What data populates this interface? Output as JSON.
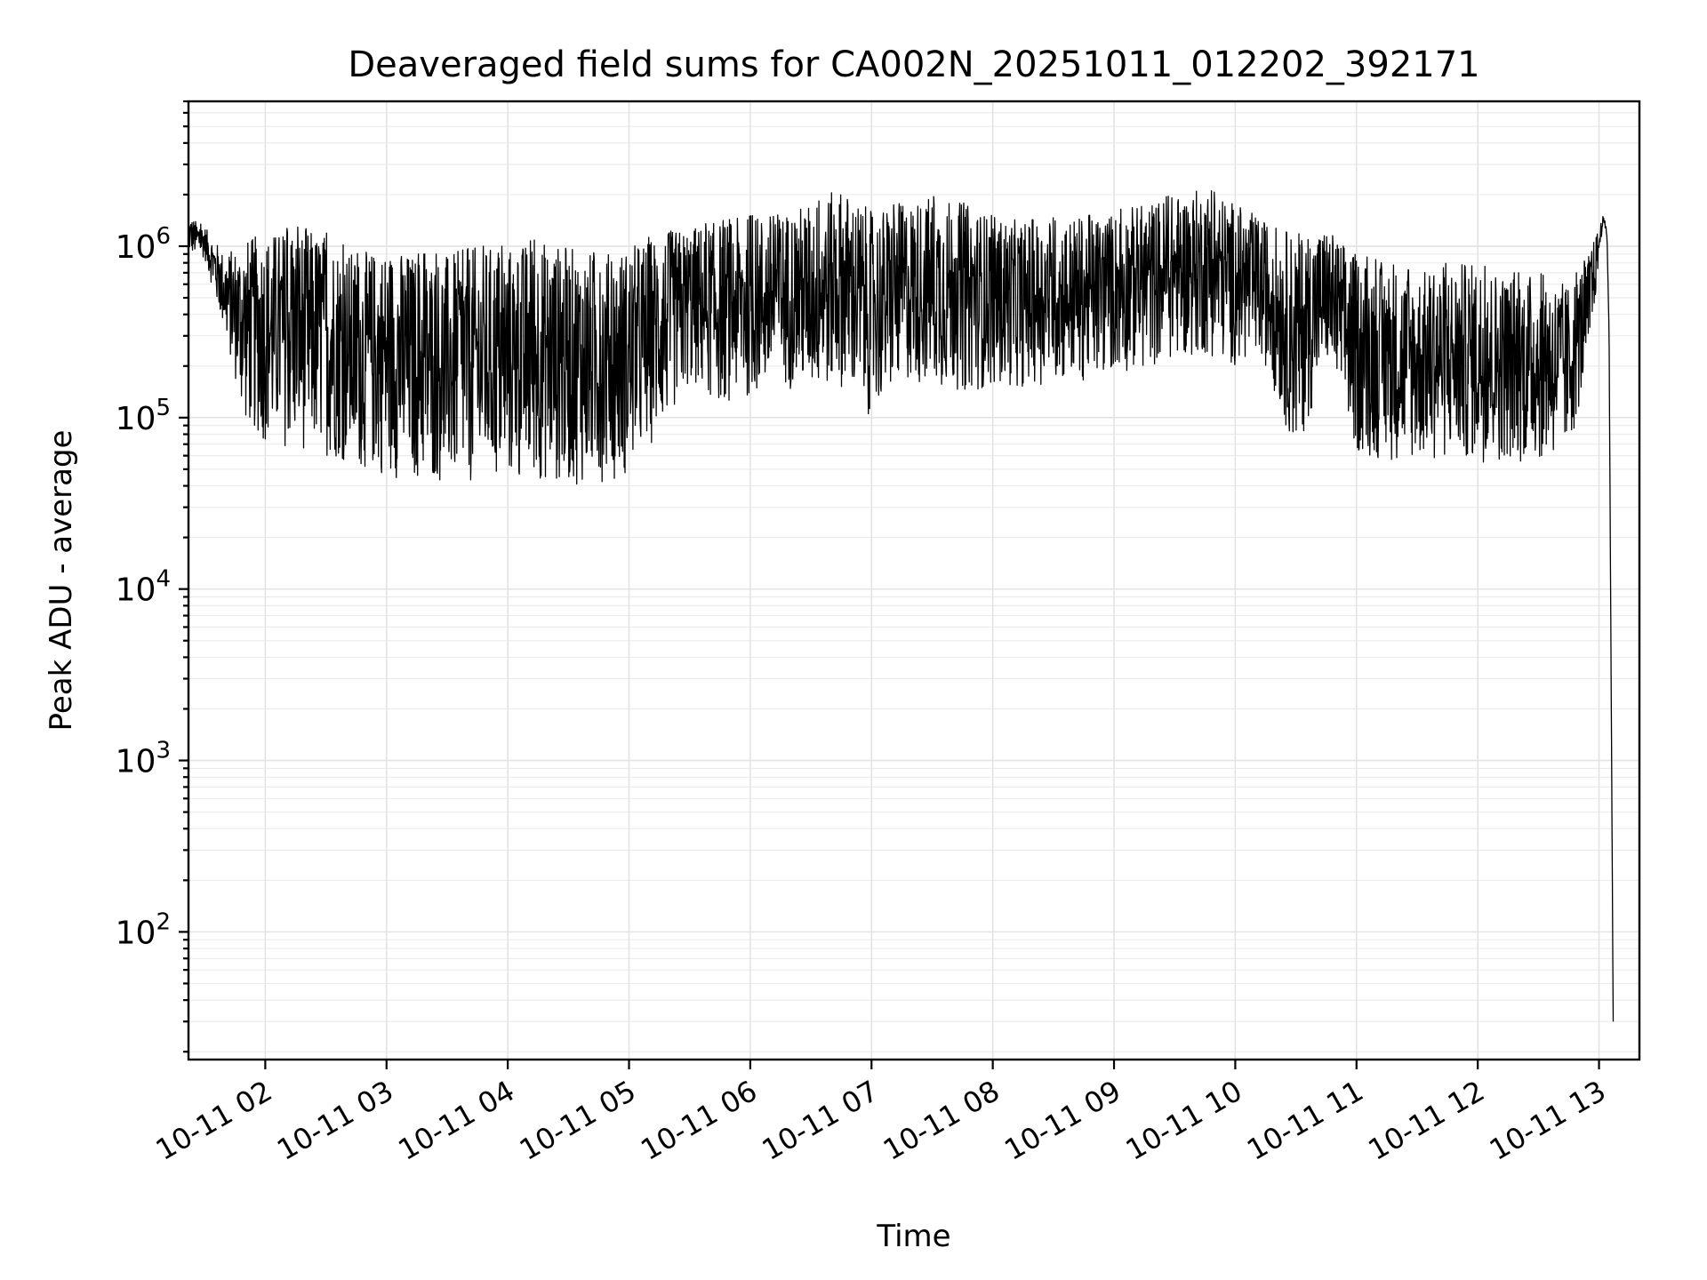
{
  "chart_data": {
    "type": "line",
    "title": "Deaveraged field sums for CA002N_20251011_012202_392171",
    "xlabel": "Time",
    "ylabel": "Peak ADU - average",
    "yscale": "log",
    "ylim": [
      18,
      7000000
    ],
    "xlim": [
      "2025-10-11 01:22",
      "2025-10-11 13:20"
    ],
    "grid": true,
    "x_ticks": [
      "10-11 02",
      "10-11 03",
      "10-11 04",
      "10-11 05",
      "10-11 06",
      "10-11 07",
      "10-11 08",
      "10-11 09",
      "10-11 10",
      "10-11 11",
      "10-11 12",
      "10-11 13"
    ],
    "y_ticks": [
      {
        "base": "10",
        "exp": "2"
      },
      {
        "base": "10",
        "exp": "3"
      },
      {
        "base": "10",
        "exp": "4"
      },
      {
        "base": "10",
        "exp": "5"
      },
      {
        "base": "10",
        "exp": "6"
      }
    ],
    "series": [
      {
        "color": "#000000",
        "x": [
          "2025-10-11 01:22",
          "2025-10-11 01:30",
          "2025-10-11 01:40",
          "2025-10-11 01:50",
          "2025-10-11 02:00",
          "2025-10-11 02:15",
          "2025-10-11 02:30",
          "2025-10-11 02:45",
          "2025-10-11 03:00",
          "2025-10-11 03:15",
          "2025-10-11 03:30",
          "2025-10-11 03:45",
          "2025-10-11 04:00",
          "2025-10-11 04:15",
          "2025-10-11 04:30",
          "2025-10-11 04:45",
          "2025-10-11 05:00",
          "2025-10-11 05:15",
          "2025-10-11 05:30",
          "2025-10-11 05:45",
          "2025-10-11 06:00",
          "2025-10-11 06:15",
          "2025-10-11 06:30",
          "2025-10-11 06:45",
          "2025-10-11 07:00",
          "2025-10-11 07:15",
          "2025-10-11 07:30",
          "2025-10-11 07:45",
          "2025-10-11 08:00",
          "2025-10-11 08:15",
          "2025-10-11 08:30",
          "2025-10-11 08:45",
          "2025-10-11 09:00",
          "2025-10-11 09:15",
          "2025-10-11 09:30",
          "2025-10-11 09:45",
          "2025-10-11 10:00",
          "2025-10-11 10:15",
          "2025-10-11 10:30",
          "2025-10-11 10:45",
          "2025-10-11 11:00",
          "2025-10-11 11:15",
          "2025-10-11 11:30",
          "2025-10-11 11:45",
          "2025-10-11 12:00",
          "2025-10-11 12:15",
          "2025-10-11 12:30",
          "2025-10-11 12:45",
          "2025-10-11 12:55",
          "2025-10-11 13:00",
          "2025-10-11 13:02",
          "2025-10-11 13:04",
          "2025-10-11 13:05",
          "2025-10-11 13:06",
          "2025-10-11 13:07"
        ],
        "y_low": [
          900000,
          850000,
          300000,
          90000,
          70000,
          65000,
          60000,
          50000,
          45000,
          42000,
          40000,
          40000,
          40000,
          42000,
          40000,
          42000,
          45000,
          80000,
          150000,
          120000,
          130000,
          150000,
          140000,
          150000,
          100000,
          160000,
          150000,
          140000,
          150000,
          150000,
          160000,
          160000,
          180000,
          190000,
          220000,
          230000,
          200000,
          200000,
          60000,
          200000,
          60000,
          55000,
          55000,
          55000,
          55000,
          55000,
          55000,
          60000,
          200000,
          800000,
          1400000,
          1100000,
          300000,
          3000,
          30
        ],
        "y_high": [
          1500000,
          1300000,
          900000,
          1100000,
          1200000,
          1300000,
          1200000,
          900000,
          1000000,
          900000,
          900000,
          1000000,
          1000000,
          1100000,
          1000000,
          900000,
          1000000,
          1200000,
          1300000,
          1400000,
          1500000,
          1600000,
          1800000,
          2200000,
          1600000,
          1800000,
          2000000,
          1800000,
          1500000,
          1400000,
          1500000,
          1500000,
          1600000,
          1800000,
          2000000,
          2200000,
          1800000,
          1400000,
          1200000,
          1300000,
          900000,
          800000,
          700000,
          800000,
          800000,
          700000,
          700000,
          600000,
          900000,
          1300000,
          1500000,
          1300000,
          500000,
          5000,
          30
        ]
      }
    ]
  }
}
